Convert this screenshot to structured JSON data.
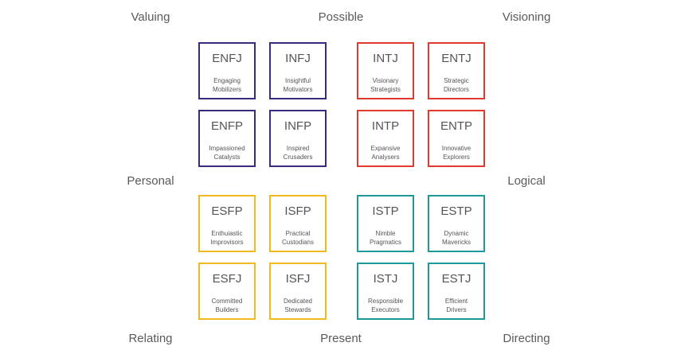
{
  "axes": {
    "top_left": "Valuing",
    "top_center": "Possible",
    "top_right": "Visioning",
    "middle_left": "Personal",
    "middle_right": "Logical",
    "bottom_left": "Relating",
    "bottom_center": "Present",
    "bottom_right": "Directing"
  },
  "quadrant_colors": {
    "top_left": "#3b2a80",
    "top_right": "#e03a2f",
    "bottom_left": "#f2b91e",
    "bottom_right": "#1f9a9a"
  },
  "types": [
    {
      "code": "ENFJ",
      "line1": "Engaging",
      "line2": "Mobilizers",
      "quadrant": "top_left"
    },
    {
      "code": "INFJ",
      "line1": "Insightful",
      "line2": "Motivators",
      "quadrant": "top_left"
    },
    {
      "code": "INTJ",
      "line1": "Visionary",
      "line2": "Strategists",
      "quadrant": "top_right"
    },
    {
      "code": "ENTJ",
      "line1": "Strategic",
      "line2": "Directors",
      "quadrant": "top_right"
    },
    {
      "code": "ENFP",
      "line1": "Impassioned",
      "line2": "Catalysts",
      "quadrant": "top_left"
    },
    {
      "code": "INFP",
      "line1": "Inspired",
      "line2": "Crusaders",
      "quadrant": "top_left"
    },
    {
      "code": "INTP",
      "line1": "Expansive",
      "line2": "Analysers",
      "quadrant": "top_right"
    },
    {
      "code": "ENTP",
      "line1": "Innovative",
      "line2": "Explorers",
      "quadrant": "top_right"
    },
    {
      "code": "ESFP",
      "line1": "Enthuiastic",
      "line2": "Improvisors",
      "quadrant": "bottom_left"
    },
    {
      "code": "ISFP",
      "line1": "Practical",
      "line2": "Custodians",
      "quadrant": "bottom_left"
    },
    {
      "code": "ISTP",
      "line1": "Nimble",
      "line2": "Pragmatics",
      "quadrant": "bottom_right"
    },
    {
      "code": "ESTP",
      "line1": "Dynamic",
      "line2": "Mavericks",
      "quadrant": "bottom_right"
    },
    {
      "code": "ESFJ",
      "line1": "Committed",
      "line2": "Builders",
      "quadrant": "bottom_left"
    },
    {
      "code": "ISFJ",
      "line1": "Dedicated",
      "line2": "Stewards",
      "quadrant": "bottom_left"
    },
    {
      "code": "ISTJ",
      "line1": "Responsible",
      "line2": "Executors",
      "quadrant": "bottom_right"
    },
    {
      "code": "ESTJ",
      "line1": "Efficient",
      "line2": "Drivers",
      "quadrant": "bottom_right"
    }
  ]
}
